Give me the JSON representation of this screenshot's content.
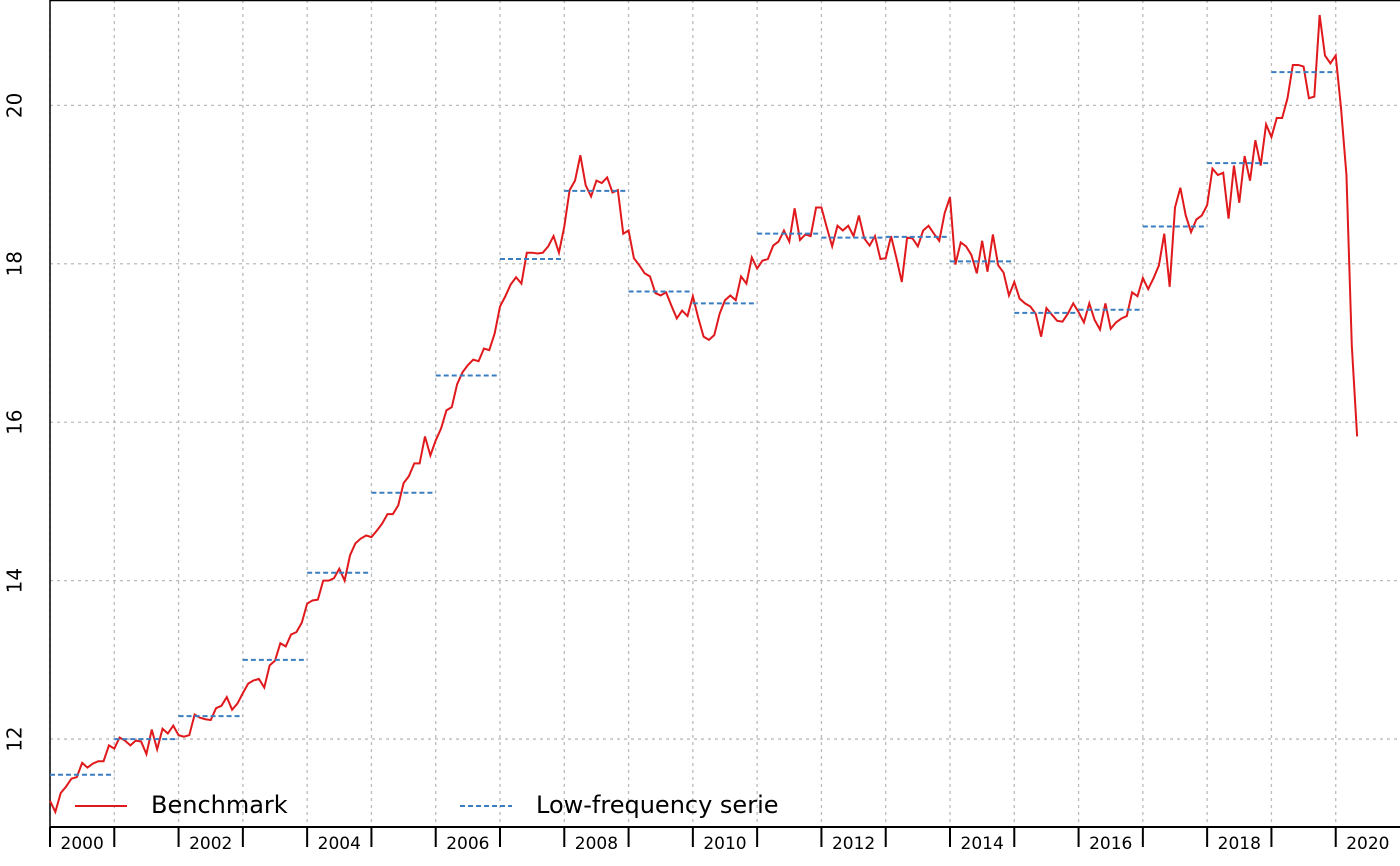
{
  "chart_data": {
    "type": "line",
    "xlim": [
      2000,
      2021
    ],
    "ylim": [
      10.89,
      21.33
    ],
    "xticks": [
      2000,
      2001,
      2002,
      2003,
      2004,
      2005,
      2006,
      2007,
      2008,
      2009,
      2010,
      2011,
      2012,
      2013,
      2014,
      2015,
      2016,
      2017,
      2018,
      2019,
      2020
    ],
    "xlabels": [
      2000,
      2002,
      2004,
      2006,
      2008,
      2010,
      2012,
      2014,
      2016,
      2018,
      2020
    ],
    "yticks": [
      12,
      14,
      16,
      18,
      20
    ],
    "grid": true,
    "legend": "bottom-left",
    "series": [
      {
        "name": "Benchmark",
        "color": "#e0191c",
        "style": "solid",
        "x": [
          2000,
          2000.083,
          2000.167,
          2000.25,
          2000.333,
          2000.417,
          2000.5,
          2000.583,
          2000.667,
          2000.75,
          2000.833,
          2000.917,
          2001,
          2001.083,
          2001.167,
          2001.25,
          2001.333,
          2001.417,
          2001.5,
          2001.583,
          2001.667,
          2001.75,
          2001.833,
          2001.917,
          2002,
          2002.083,
          2002.167,
          2002.25,
          2002.333,
          2002.417,
          2002.5,
          2002.583,
          2002.667,
          2002.75,
          2002.833,
          2002.917,
          2003,
          2003.083,
          2003.167,
          2003.25,
          2003.333,
          2003.417,
          2003.5,
          2003.583,
          2003.667,
          2003.75,
          2003.833,
          2003.917,
          2004,
          2004.083,
          2004.167,
          2004.25,
          2004.333,
          2004.417,
          2004.5,
          2004.583,
          2004.667,
          2004.75,
          2004.833,
          2004.917,
          2005,
          2005.083,
          2005.167,
          2005.25,
          2005.333,
          2005.417,
          2005.5,
          2005.583,
          2005.667,
          2005.75,
          2005.833,
          2005.917,
          2006,
          2006.083,
          2006.167,
          2006.25,
          2006.333,
          2006.417,
          2006.5,
          2006.583,
          2006.667,
          2006.75,
          2006.833,
          2006.917,
          2007,
          2007.083,
          2007.167,
          2007.25,
          2007.333,
          2007.417,
          2007.5,
          2007.583,
          2007.667,
          2007.75,
          2007.833,
          2007.917,
          2008,
          2008.083,
          2008.167,
          2008.25,
          2008.333,
          2008.417,
          2008.5,
          2008.583,
          2008.667,
          2008.75,
          2008.833,
          2008.917,
          2009,
          2009.083,
          2009.167,
          2009.25,
          2009.333,
          2009.417,
          2009.5,
          2009.583,
          2009.667,
          2009.75,
          2009.833,
          2009.917,
          2010,
          2010.083,
          2010.167,
          2010.25,
          2010.333,
          2010.417,
          2010.5,
          2010.583,
          2010.667,
          2010.75,
          2010.833,
          2010.917,
          2011,
          2011.083,
          2011.167,
          2011.25,
          2011.333,
          2011.417,
          2011.5,
          2011.583,
          2011.667,
          2011.75,
          2011.833,
          2011.917,
          2012,
          2012.083,
          2012.167,
          2012.25,
          2012.333,
          2012.417,
          2012.5,
          2012.583,
          2012.667,
          2012.75,
          2012.833,
          2012.917,
          2013,
          2013.083,
          2013.167,
          2013.25,
          2013.333,
          2013.417,
          2013.5,
          2013.583,
          2013.667,
          2013.75,
          2013.833,
          2013.917,
          2014,
          2014.083,
          2014.167,
          2014.25,
          2014.333,
          2014.417,
          2014.5,
          2014.583,
          2014.667,
          2014.75,
          2014.833,
          2014.917,
          2015,
          2015.083,
          2015.167,
          2015.25,
          2015.333,
          2015.417,
          2015.5,
          2015.583,
          2015.667,
          2015.75,
          2015.833,
          2015.917,
          2016,
          2016.083,
          2016.167,
          2016.25,
          2016.333,
          2016.417,
          2016.5,
          2016.583,
          2016.667,
          2016.75,
          2016.833,
          2016.917,
          2017,
          2017.083,
          2017.167,
          2017.25,
          2017.333,
          2017.417,
          2017.5,
          2017.583,
          2017.667,
          2017.75,
          2017.833,
          2017.917,
          2018,
          2018.083,
          2018.167,
          2018.25,
          2018.333,
          2018.417,
          2018.5,
          2018.583,
          2018.667,
          2018.75,
          2018.833,
          2018.917,
          2019,
          2019.083,
          2019.167,
          2019.25,
          2019.333,
          2019.417,
          2019.5,
          2019.583,
          2019.667,
          2019.75,
          2019.833,
          2019.917,
          2020,
          2020.083,
          2020.167,
          2020.25,
          2020.333
        ],
        "values": [
          11.22,
          11.08,
          11.32,
          11.4,
          11.5,
          11.52,
          11.7,
          11.64,
          11.69,
          11.72,
          11.72,
          11.92,
          11.88,
          12.02,
          11.98,
          11.92,
          11.98,
          11.97,
          11.81,
          12.12,
          11.87,
          12.13,
          12.07,
          12.17,
          12.05,
          12.03,
          12.05,
          12.31,
          12.27,
          12.25,
          12.24,
          12.39,
          12.42,
          12.53,
          12.37,
          12.45,
          12.58,
          12.7,
          12.74,
          12.76,
          12.65,
          12.93,
          12.99,
          13.21,
          13.17,
          13.32,
          13.35,
          13.47,
          13.71,
          13.75,
          13.76,
          14.0,
          14.0,
          14.03,
          14.15,
          14.0,
          14.32,
          14.47,
          14.53,
          14.57,
          14.55,
          14.63,
          14.72,
          14.84,
          14.84,
          14.95,
          15.23,
          15.32,
          15.48,
          15.48,
          15.82,
          15.58,
          15.77,
          15.92,
          16.15,
          16.19,
          16.48,
          16.63,
          16.72,
          16.79,
          16.77,
          16.93,
          16.91,
          17.12,
          17.46,
          17.59,
          17.74,
          17.83,
          17.75,
          18.14,
          18.14,
          18.13,
          18.14,
          18.22,
          18.35,
          18.14,
          18.47,
          18.93,
          19.05,
          19.37,
          18.99,
          18.85,
          19.05,
          19.02,
          19.09,
          18.9,
          18.93,
          18.38,
          18.42,
          18.07,
          17.98,
          17.88,
          17.84,
          17.63,
          17.6,
          17.64,
          17.47,
          17.31,
          17.41,
          17.34,
          17.59,
          17.32,
          17.08,
          17.04,
          17.1,
          17.37,
          17.54,
          17.6,
          17.54,
          17.84,
          17.75,
          18.08,
          17.94,
          18.04,
          18.06,
          18.23,
          18.28,
          18.42,
          18.28,
          18.7,
          18.3,
          18.37,
          18.35,
          18.71,
          18.71,
          18.46,
          18.22,
          18.48,
          18.42,
          18.48,
          18.35,
          18.61,
          18.32,
          18.23,
          18.35,
          18.06,
          18.07,
          18.35,
          18.07,
          17.77,
          18.33,
          18.32,
          18.22,
          18.42,
          18.48,
          18.38,
          18.29,
          18.64,
          18.84,
          17.99,
          18.27,
          18.22,
          18.11,
          17.88,
          18.29,
          17.9,
          18.37,
          17.98,
          17.89,
          17.6,
          17.77,
          17.56,
          17.5,
          17.46,
          17.37,
          17.08,
          17.44,
          17.36,
          17.28,
          17.27,
          17.37,
          17.5,
          17.39,
          17.26,
          17.5,
          17.29,
          17.17,
          17.5,
          17.18,
          17.26,
          17.31,
          17.34,
          17.64,
          17.59,
          17.82,
          17.68,
          17.82,
          17.98,
          18.38,
          17.71,
          18.71,
          18.96,
          18.61,
          18.4,
          18.56,
          18.61,
          18.74,
          19.2,
          19.12,
          19.15,
          18.57,
          19.24,
          18.77,
          19.36,
          19.05,
          19.56,
          19.24,
          19.76,
          19.6,
          19.84,
          19.84,
          20.09,
          20.51,
          20.51,
          20.49,
          20.09,
          20.11,
          21.14,
          20.63,
          20.53,
          20.63,
          19.96,
          19.12,
          16.97,
          15.82
        ]
      },
      {
        "name": "Low-frequency serie",
        "color": "#3a7dc0",
        "style": "dashed",
        "x": [
          2000,
          2001,
          2002,
          2003,
          2004,
          2005,
          2006,
          2007,
          2008,
          2009,
          2010,
          2011,
          2012,
          2013,
          2014,
          2015,
          2016,
          2017,
          2018,
          2019
        ],
        "values": [
          11.55,
          12.0,
          12.29,
          13.0,
          14.1,
          15.11,
          16.59,
          18.06,
          18.92,
          17.65,
          17.5,
          18.38,
          18.33,
          18.34,
          18.03,
          17.38,
          17.42,
          18.47,
          19.27,
          20.42
        ]
      }
    ]
  }
}
